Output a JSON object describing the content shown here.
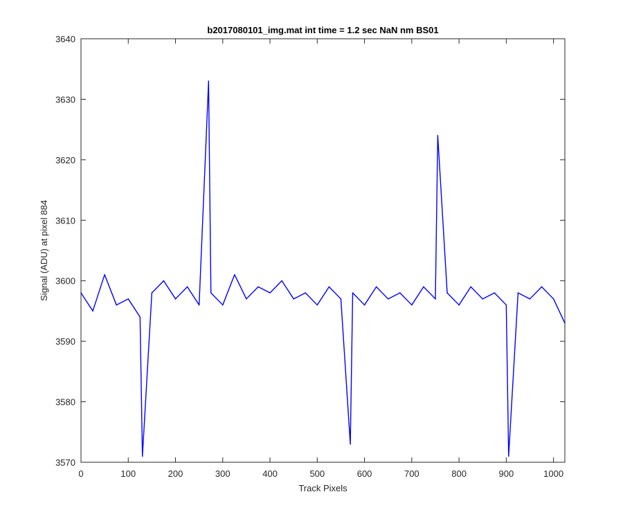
{
  "chart_data": {
    "type": "line",
    "title": "b2017080101_img.mat int time = 1.2 sec  NaN nm BS01",
    "xlabel": "Track Pixels",
    "ylabel": "Signal (ADU) at pixel 884",
    "xlim": [
      0,
      1024
    ],
    "ylim": [
      3570,
      3640
    ],
    "xticks": [
      0,
      100,
      200,
      300,
      400,
      500,
      600,
      700,
      800,
      900,
      1000
    ],
    "yticks": [
      3570,
      3580,
      3590,
      3600,
      3610,
      3620,
      3630,
      3640
    ],
    "grid": false,
    "color": "#0000ff",
    "series": [
      {
        "x": [
          0,
          25,
          50,
          75,
          100,
          125,
          130,
          150,
          175,
          200,
          225,
          250,
          270,
          275,
          300,
          325,
          350,
          375,
          400,
          425,
          450,
          475,
          500,
          525,
          550,
          570,
          575,
          600,
          625,
          650,
          675,
          700,
          725,
          750,
          755,
          775,
          800,
          825,
          850,
          875,
          900,
          905,
          925,
          950,
          975,
          1000,
          1024
        ],
        "y": [
          3598,
          3595,
          3601,
          3596,
          3597,
          3594,
          3571,
          3598,
          3600,
          3597,
          3599,
          3596,
          3633,
          3598,
          3596,
          3601,
          3597,
          3599,
          3598,
          3600,
          3597,
          3598,
          3596,
          3599,
          3597,
          3573,
          3598,
          3596,
          3599,
          3597,
          3598,
          3596,
          3599,
          3597,
          3624,
          3598,
          3596,
          3599,
          3597,
          3598,
          3596,
          3571,
          3598,
          3597,
          3599,
          3597,
          3593
        ]
      }
    ]
  }
}
